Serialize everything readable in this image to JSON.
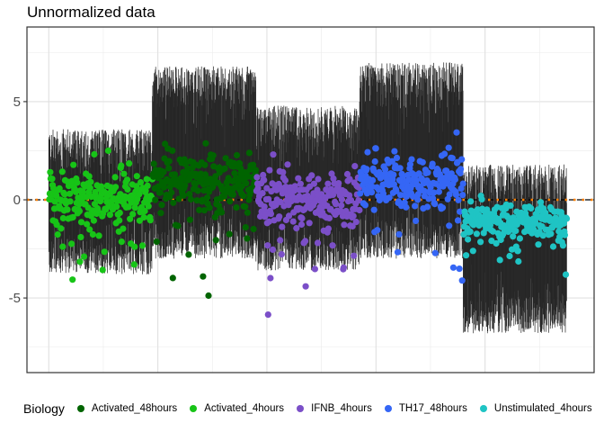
{
  "chart_data": {
    "type": "scatter",
    "title": "Unnormalized data",
    "xlabel": "",
    "ylabel": "",
    "ylim": [
      -8.8,
      8.8
    ],
    "y_ticks": [
      -5,
      0,
      5
    ],
    "y_tick_labels": [
      "-5",
      "0",
      "5"
    ],
    "x_tick_labels": [],
    "grid": true,
    "x_range": [
      -40,
      1000
    ],
    "reference_lines": [
      {
        "y": 0,
        "color": "#000000",
        "style": "dashed"
      },
      {
        "y": 0,
        "color": "#FF7F00",
        "style": "dotted"
      }
    ],
    "range_bars": {
      "color": "#262626",
      "description": "per-sample value range (vertical segment per observation)"
    },
    "legend": {
      "title": "Biology",
      "position": "bottom",
      "entries": [
        {
          "name": "Activated_48hours",
          "color": "#006400"
        },
        {
          "name": "Activated_4hours",
          "color": "#17C417"
        },
        {
          "name": "IFNB_4hours",
          "color": "#7B4FC8"
        },
        {
          "name": "TH17_48hours",
          "color": "#3566F5"
        },
        {
          "name": "Unstimulated_4hours",
          "color": "#1FC4C4"
        }
      ]
    },
    "series": [
      {
        "name": "Activated_4hours",
        "x_range": [
          0,
          190
        ],
        "point_center": 0.0,
        "point_spread": 0.9,
        "bar_low": -3.8,
        "bar_high": 3.6,
        "color": "#17C417"
      },
      {
        "name": "Activated_48hours",
        "x_range": [
          190,
          380
        ],
        "point_center": 1.0,
        "point_spread": 0.9,
        "bar_low": -3.0,
        "bar_high": 6.8,
        "color": "#006400"
      },
      {
        "name": "IFNB_4hours",
        "x_range": [
          380,
          570
        ],
        "point_center": -0.1,
        "point_spread": 0.9,
        "bar_low": -3.6,
        "bar_high": 4.8,
        "color": "#7B4FC8"
      },
      {
        "name": "TH17_48hours",
        "x_range": [
          570,
          760
        ],
        "point_center": 1.0,
        "point_spread": 0.9,
        "bar_low": -3.0,
        "bar_high": 7.0,
        "color": "#3566F5"
      },
      {
        "name": "Unstimulated_4hours",
        "x_range": [
          760,
          950
        ],
        "point_center": -1.1,
        "point_spread": 0.55,
        "bar_low": -6.8,
        "bar_high": 1.8,
        "color": "#1FC4C4"
      }
    ]
  }
}
